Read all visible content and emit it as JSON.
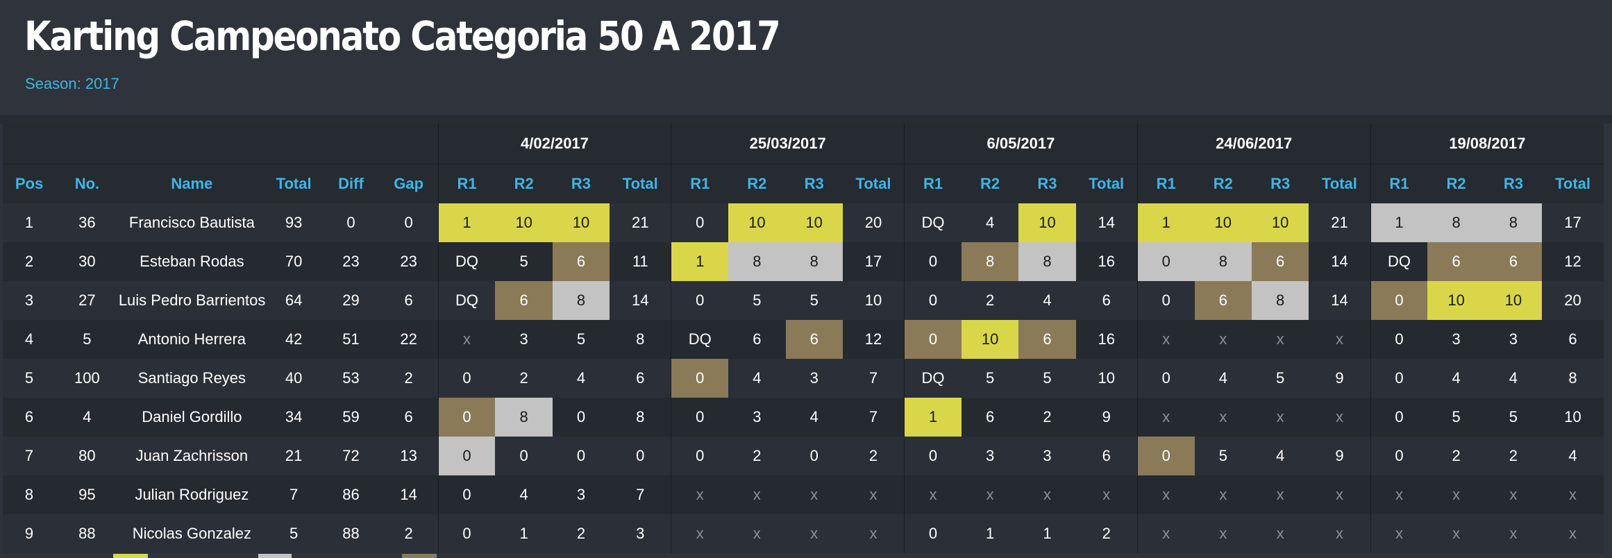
{
  "page": {
    "title": "Karting Campeonato Categoria 50 A 2017",
    "season": "Season: 2017"
  },
  "columns": {
    "pos": "Pos",
    "no": "No.",
    "name": "Name",
    "total": "Total",
    "diff": "Diff",
    "gap": "Gap",
    "r1": "R1",
    "r2": "R2",
    "r3": "R3",
    "event_total": "Total"
  },
  "events": [
    "4/02/2017",
    "25/03/2017",
    "6/05/2017",
    "24/06/2017",
    "19/08/2017"
  ],
  "colors": {
    "gold": "#dad64a",
    "silver": "#c3c3c3",
    "bronze": "#8a7a57",
    "accent": "#3db6e6"
  },
  "rows": [
    {
      "pos": "1",
      "no": "36",
      "name": "Francisco Bautista",
      "total": "93",
      "diff": "0",
      "gap": "0",
      "events": [
        {
          "r": [
            {
              "v": "1",
              "c": "gold"
            },
            {
              "v": "10",
              "c": "gold"
            },
            {
              "v": "10",
              "c": "gold"
            }
          ],
          "t": "21"
        },
        {
          "r": [
            {
              "v": "0",
              "c": ""
            },
            {
              "v": "10",
              "c": "gold"
            },
            {
              "v": "10",
              "c": "gold"
            }
          ],
          "t": "20"
        },
        {
          "r": [
            {
              "v": "DQ",
              "c": ""
            },
            {
              "v": "4",
              "c": ""
            },
            {
              "v": "10",
              "c": "gold"
            }
          ],
          "t": "14"
        },
        {
          "r": [
            {
              "v": "1",
              "c": "gold"
            },
            {
              "v": "10",
              "c": "gold"
            },
            {
              "v": "10",
              "c": "gold"
            }
          ],
          "t": "21"
        },
        {
          "r": [
            {
              "v": "1",
              "c": "silver"
            },
            {
              "v": "8",
              "c": "silver"
            },
            {
              "v": "8",
              "c": "silver"
            }
          ],
          "t": "17"
        }
      ]
    },
    {
      "pos": "2",
      "no": "30",
      "name": "Esteban Rodas",
      "total": "70",
      "diff": "23",
      "gap": "23",
      "events": [
        {
          "r": [
            {
              "v": "DQ",
              "c": ""
            },
            {
              "v": "5",
              "c": ""
            },
            {
              "v": "6",
              "c": "bronze"
            }
          ],
          "t": "11"
        },
        {
          "r": [
            {
              "v": "1",
              "c": "gold"
            },
            {
              "v": "8",
              "c": "silver"
            },
            {
              "v": "8",
              "c": "silver"
            }
          ],
          "t": "17"
        },
        {
          "r": [
            {
              "v": "0",
              "c": ""
            },
            {
              "v": "8",
              "c": "bronze"
            },
            {
              "v": "8",
              "c": "silver"
            }
          ],
          "t": "16"
        },
        {
          "r": [
            {
              "v": "0",
              "c": "silver"
            },
            {
              "v": "8",
              "c": "silver"
            },
            {
              "v": "6",
              "c": "bronze"
            }
          ],
          "t": "14"
        },
        {
          "r": [
            {
              "v": "DQ",
              "c": ""
            },
            {
              "v": "6",
              "c": "bronze"
            },
            {
              "v": "6",
              "c": "bronze"
            }
          ],
          "t": "12"
        }
      ]
    },
    {
      "pos": "3",
      "no": "27",
      "name": "Luis Pedro Barrientos",
      "total": "64",
      "diff": "29",
      "gap": "6",
      "events": [
        {
          "r": [
            {
              "v": "DQ",
              "c": ""
            },
            {
              "v": "6",
              "c": "bronze"
            },
            {
              "v": "8",
              "c": "silver"
            }
          ],
          "t": "14"
        },
        {
          "r": [
            {
              "v": "0",
              "c": ""
            },
            {
              "v": "5",
              "c": ""
            },
            {
              "v": "5",
              "c": ""
            }
          ],
          "t": "10"
        },
        {
          "r": [
            {
              "v": "0",
              "c": ""
            },
            {
              "v": "2",
              "c": ""
            },
            {
              "v": "4",
              "c": ""
            }
          ],
          "t": "6"
        },
        {
          "r": [
            {
              "v": "0",
              "c": ""
            },
            {
              "v": "6",
              "c": "bronze"
            },
            {
              "v": "8",
              "c": "silver"
            }
          ],
          "t": "14"
        },
        {
          "r": [
            {
              "v": "0",
              "c": "bronze"
            },
            {
              "v": "10",
              "c": "gold"
            },
            {
              "v": "10",
              "c": "gold"
            }
          ],
          "t": "20"
        }
      ]
    },
    {
      "pos": "4",
      "no": "5",
      "name": "Antonio Herrera",
      "total": "42",
      "diff": "51",
      "gap": "22",
      "events": [
        {
          "r": [
            {
              "v": "x",
              "c": "x"
            },
            {
              "v": "3",
              "c": ""
            },
            {
              "v": "5",
              "c": ""
            }
          ],
          "t": "8"
        },
        {
          "r": [
            {
              "v": "DQ",
              "c": ""
            },
            {
              "v": "6",
              "c": ""
            },
            {
              "v": "6",
              "c": "bronze"
            }
          ],
          "t": "12"
        },
        {
          "r": [
            {
              "v": "0",
              "c": "bronze"
            },
            {
              "v": "10",
              "c": "gold"
            },
            {
              "v": "6",
              "c": "bronze"
            }
          ],
          "t": "16"
        },
        {
          "r": [
            {
              "v": "x",
              "c": "x"
            },
            {
              "v": "x",
              "c": "x"
            },
            {
              "v": "x",
              "c": "x"
            }
          ],
          "t": "x"
        },
        {
          "r": [
            {
              "v": "0",
              "c": ""
            },
            {
              "v": "3",
              "c": ""
            },
            {
              "v": "3",
              "c": ""
            }
          ],
          "t": "6"
        }
      ]
    },
    {
      "pos": "5",
      "no": "100",
      "name": "Santiago Reyes",
      "total": "40",
      "diff": "53",
      "gap": "2",
      "events": [
        {
          "r": [
            {
              "v": "0",
              "c": ""
            },
            {
              "v": "2",
              "c": ""
            },
            {
              "v": "4",
              "c": ""
            }
          ],
          "t": "6"
        },
        {
          "r": [
            {
              "v": "0",
              "c": "bronze"
            },
            {
              "v": "4",
              "c": ""
            },
            {
              "v": "3",
              "c": ""
            }
          ],
          "t": "7"
        },
        {
          "r": [
            {
              "v": "DQ",
              "c": ""
            },
            {
              "v": "5",
              "c": ""
            },
            {
              "v": "5",
              "c": ""
            }
          ],
          "t": "10"
        },
        {
          "r": [
            {
              "v": "0",
              "c": ""
            },
            {
              "v": "4",
              "c": ""
            },
            {
              "v": "5",
              "c": ""
            }
          ],
          "t": "9"
        },
        {
          "r": [
            {
              "v": "0",
              "c": ""
            },
            {
              "v": "4",
              "c": ""
            },
            {
              "v": "4",
              "c": ""
            }
          ],
          "t": "8"
        }
      ]
    },
    {
      "pos": "6",
      "no": "4",
      "name": "Daniel Gordillo",
      "total": "34",
      "diff": "59",
      "gap": "6",
      "events": [
        {
          "r": [
            {
              "v": "0",
              "c": "bronze"
            },
            {
              "v": "8",
              "c": "silver"
            },
            {
              "v": "0",
              "c": ""
            }
          ],
          "t": "8"
        },
        {
          "r": [
            {
              "v": "0",
              "c": ""
            },
            {
              "v": "3",
              "c": ""
            },
            {
              "v": "4",
              "c": ""
            }
          ],
          "t": "7"
        },
        {
          "r": [
            {
              "v": "1",
              "c": "gold"
            },
            {
              "v": "6",
              "c": ""
            },
            {
              "v": "2",
              "c": ""
            }
          ],
          "t": "9"
        },
        {
          "r": [
            {
              "v": "x",
              "c": "x"
            },
            {
              "v": "x",
              "c": "x"
            },
            {
              "v": "x",
              "c": "x"
            }
          ],
          "t": "x"
        },
        {
          "r": [
            {
              "v": "0",
              "c": ""
            },
            {
              "v": "5",
              "c": ""
            },
            {
              "v": "5",
              "c": ""
            }
          ],
          "t": "10"
        }
      ]
    },
    {
      "pos": "7",
      "no": "80",
      "name": "Juan Zachrisson",
      "total": "21",
      "diff": "72",
      "gap": "13",
      "events": [
        {
          "r": [
            {
              "v": "0",
              "c": "silver"
            },
            {
              "v": "0",
              "c": ""
            },
            {
              "v": "0",
              "c": ""
            }
          ],
          "t": "0"
        },
        {
          "r": [
            {
              "v": "0",
              "c": ""
            },
            {
              "v": "2",
              "c": ""
            },
            {
              "v": "0",
              "c": ""
            }
          ],
          "t": "2"
        },
        {
          "r": [
            {
              "v": "0",
              "c": ""
            },
            {
              "v": "3",
              "c": ""
            },
            {
              "v": "3",
              "c": ""
            }
          ],
          "t": "6"
        },
        {
          "r": [
            {
              "v": "0",
              "c": "bronze"
            },
            {
              "v": "5",
              "c": ""
            },
            {
              "v": "4",
              "c": ""
            }
          ],
          "t": "9"
        },
        {
          "r": [
            {
              "v": "0",
              "c": ""
            },
            {
              "v": "2",
              "c": ""
            },
            {
              "v": "2",
              "c": ""
            }
          ],
          "t": "4"
        }
      ]
    },
    {
      "pos": "8",
      "no": "95",
      "name": "Julian Rodriguez",
      "total": "7",
      "diff": "86",
      "gap": "14",
      "events": [
        {
          "r": [
            {
              "v": "0",
              "c": ""
            },
            {
              "v": "4",
              "c": ""
            },
            {
              "v": "3",
              "c": ""
            }
          ],
          "t": "7"
        },
        {
          "r": [
            {
              "v": "x",
              "c": "x"
            },
            {
              "v": "x",
              "c": "x"
            },
            {
              "v": "x",
              "c": "x"
            }
          ],
          "t": "x"
        },
        {
          "r": [
            {
              "v": "x",
              "c": "x"
            },
            {
              "v": "x",
              "c": "x"
            },
            {
              "v": "x",
              "c": "x"
            }
          ],
          "t": "x"
        },
        {
          "r": [
            {
              "v": "x",
              "c": "x"
            },
            {
              "v": "x",
              "c": "x"
            },
            {
              "v": "x",
              "c": "x"
            }
          ],
          "t": "x"
        },
        {
          "r": [
            {
              "v": "x",
              "c": "x"
            },
            {
              "v": "x",
              "c": "x"
            },
            {
              "v": "x",
              "c": "x"
            }
          ],
          "t": "x"
        }
      ]
    },
    {
      "pos": "9",
      "no": "88",
      "name": "Nicolas Gonzalez",
      "total": "5",
      "diff": "88",
      "gap": "2",
      "events": [
        {
          "r": [
            {
              "v": "0",
              "c": ""
            },
            {
              "v": "1",
              "c": ""
            },
            {
              "v": "2",
              "c": ""
            }
          ],
          "t": "3"
        },
        {
          "r": [
            {
              "v": "x",
              "c": "x"
            },
            {
              "v": "x",
              "c": "x"
            },
            {
              "v": "x",
              "c": "x"
            }
          ],
          "t": "x"
        },
        {
          "r": [
            {
              "v": "0",
              "c": ""
            },
            {
              "v": "1",
              "c": ""
            },
            {
              "v": "1",
              "c": ""
            }
          ],
          "t": "2"
        },
        {
          "r": [
            {
              "v": "x",
              "c": "x"
            },
            {
              "v": "x",
              "c": "x"
            },
            {
              "v": "x",
              "c": "x"
            }
          ],
          "t": "x"
        },
        {
          "r": [
            {
              "v": "x",
              "c": "x"
            },
            {
              "v": "x",
              "c": "x"
            },
            {
              "v": "x",
              "c": "x"
            }
          ],
          "t": "x"
        }
      ]
    }
  ]
}
